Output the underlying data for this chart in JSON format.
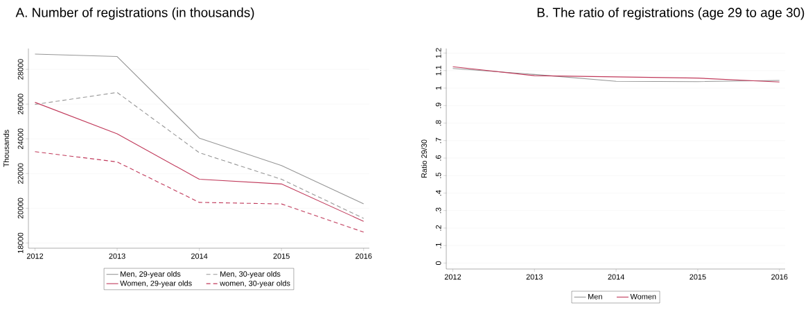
{
  "chart_data": [
    {
      "type": "line",
      "title": "A. Number of registrations (in thousands)",
      "ylabel": "Thousands",
      "x": [
        2012,
        2013,
        2014,
        2015,
        2016
      ],
      "xlim": [
        2011.92,
        2016.07
      ],
      "xticks": [
        2012,
        2013,
        2014,
        2015,
        2016
      ],
      "ylim": [
        17700,
        29200
      ],
      "yticks": [
        18000,
        20000,
        22000,
        24000,
        26000,
        28000
      ],
      "grid": "y",
      "legend": "bottom",
      "series": [
        {
          "name": "Men, 29-year olds",
          "color": "#969696",
          "line_style": "solid",
          "values": [
            28880,
            28740,
            24040,
            22460,
            20260
          ]
        },
        {
          "name": "Men, 30-year olds",
          "color": "#969696",
          "line_style": "dashed",
          "values": [
            25980,
            26670,
            23200,
            21670,
            19420
          ]
        },
        {
          "name": "Women, 29-year olds",
          "color": "#c0395a",
          "line_style": "solid",
          "values": [
            26100,
            24290,
            21670,
            21400,
            19250
          ]
        },
        {
          "name": "women, 30-year olds",
          "color": "#c0395a",
          "line_style": "dashed",
          "values": [
            23260,
            22670,
            20340,
            20250,
            18630
          ]
        }
      ]
    },
    {
      "type": "line",
      "title": "B. The ratio of registrations (age 29 to age 30)",
      "ylabel": "Ratio 29/30",
      "x": [
        2012,
        2013,
        2014,
        2015,
        2016
      ],
      "xlim": [
        2011.92,
        2016.07
      ],
      "xticks": [
        2012,
        2013,
        2014,
        2015,
        2016
      ],
      "ylim": [
        -0.034,
        1.226
      ],
      "yticks": [
        0,
        {
          "value": 0.1,
          "label": ".1"
        },
        {
          "value": 0.2,
          "label": ".2"
        },
        {
          "value": 0.3,
          "label": ".3"
        },
        {
          "value": 0.4,
          "label": ".4"
        },
        {
          "value": 0.5,
          "label": ".5"
        },
        {
          "value": 0.6,
          "label": ".6"
        },
        {
          "value": 0.7,
          "label": ".7"
        },
        {
          "value": 0.8,
          "label": ".8"
        },
        {
          "value": 0.9,
          "label": ".9"
        },
        1,
        1.1,
        1.2
      ],
      "grid": "y",
      "legend": "bottom",
      "series": [
        {
          "name": "Men",
          "color": "#969696",
          "values": [
            1.112,
            1.078,
            1.039,
            1.037,
            1.044
          ]
        },
        {
          "name": "Women",
          "color": "#c0395a",
          "values": [
            1.122,
            1.071,
            1.064,
            1.057,
            1.035
          ]
        }
      ]
    }
  ]
}
